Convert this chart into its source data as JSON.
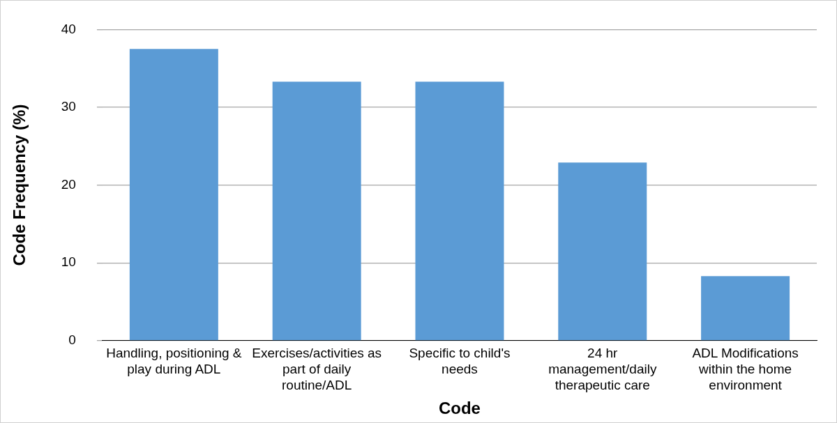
{
  "chart_data": {
    "type": "bar",
    "categories": [
      "Handling, positioning & play during ADL",
      "Exercises/activities as part of daily routine/ADL",
      "Specific to child's needs",
      "24 hr management/daily therapeutic care",
      "ADL Modifications within the home environment"
    ],
    "values": [
      37.5,
      33.3,
      33.3,
      22.9,
      8.3
    ],
    "color": "#5b9bd5",
    "xlabel": "Code",
    "ylabel": "Code Frequency (%)",
    "ylim": [
      0,
      40
    ],
    "yticks": [
      0,
      10,
      20,
      30,
      40
    ],
    "grid": "y",
    "legend": false
  }
}
